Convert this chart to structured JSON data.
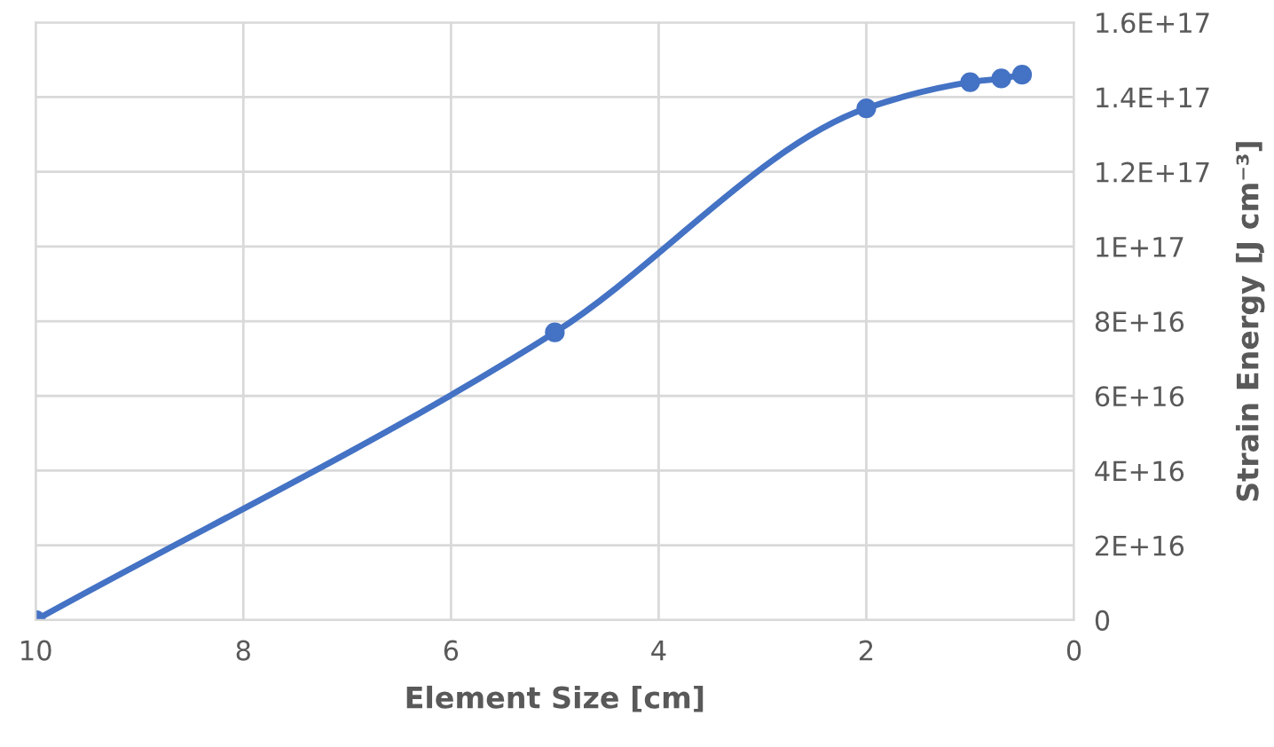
{
  "chart_data": {
    "type": "line",
    "xlabel": "Element Size [cm]",
    "ylabel": "Strain Energy [J cm⁻³]",
    "x": [
      10,
      5,
      2,
      1,
      0.7,
      0.5
    ],
    "series": [
      {
        "color": "#4472c4",
        "values": [
          0,
          7.7e+16,
          1.37e+17,
          1.44e+17,
          1.45e+17,
          1.46e+17
        ]
      }
    ],
    "marker": "circle",
    "line_style": "solid",
    "grid": true,
    "legend": false,
    "xlim": [
      10,
      0
    ],
    "xticks": [
      10,
      8,
      6,
      4,
      2,
      0
    ],
    "ylim": [
      0,
      1.6e+17
    ],
    "yticks": [
      0,
      {
        "value": 2e+16,
        "label": "2E+16"
      },
      {
        "value": 4e+16,
        "label": "4E+16"
      },
      {
        "value": 6e+16,
        "label": "6E+16"
      },
      {
        "value": 8e+16,
        "label": "8E+16"
      },
      {
        "value": 1e+17,
        "label": "1E+17"
      },
      {
        "value": 1.2e+17,
        "label": "1.2E+17"
      },
      {
        "value": 1.4e+17,
        "label": "1.4E+17"
      },
      {
        "value": 1.6e+17,
        "label": "1.6E+17"
      }
    ]
  }
}
